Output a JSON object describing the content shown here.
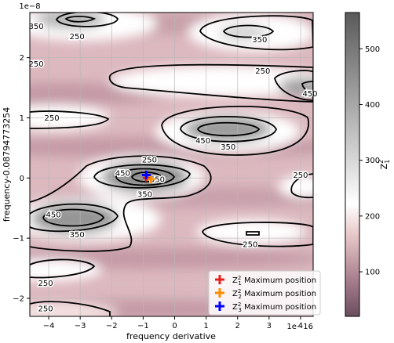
{
  "chart_data": {
    "type": "heatmap",
    "title": "",
    "xlabel": "frequency derivative",
    "ylabel": "frequency-0.08794773254",
    "x_multiplier": "1e−16",
    "y_multiplier": "1e−8",
    "xlim": [
      -4.6,
      4.4
    ],
    "ylim": [
      -2.3,
      2.75
    ],
    "xticks": [
      -4,
      -3,
      -2,
      -1,
      0,
      1,
      2,
      3,
      4
    ],
    "yticks": [
      -2,
      -1,
      0,
      1,
      2
    ],
    "grid": true,
    "colorbar": {
      "label": "Z²₁",
      "range": [
        20,
        565
      ],
      "ticks": [
        100,
        200,
        300,
        400,
        500
      ],
      "colormap": [
        "#6a4d5e",
        "#a87e8e",
        "#e8c9c9",
        "#ffffff",
        "#c8c8c8",
        "#8c8c8c",
        "#5a5a5a"
      ]
    },
    "contour_levels": [
      250,
      350,
      450,
      550
    ],
    "contour_labels": [
      {
        "text": "250",
        "x": -3.1,
        "y": 2.35
      },
      {
        "text": "350",
        "x": -4.4,
        "y": 2.52
      },
      {
        "text": "350",
        "x": 2.7,
        "y": 2.3
      },
      {
        "text": "250",
        "x": -4.4,
        "y": 1.9
      },
      {
        "text": "250",
        "x": 2.8,
        "y": 1.78
      },
      {
        "text": "450",
        "x": 4.3,
        "y": 1.4
      },
      {
        "text": "250",
        "x": -3.9,
        "y": 1.0
      },
      {
        "text": "450",
        "x": 0.9,
        "y": 0.62
      },
      {
        "text": "350",
        "x": 1.7,
        "y": 0.52
      },
      {
        "text": "250",
        "x": -0.8,
        "y": 0.3
      },
      {
        "text": "250",
        "x": 4.0,
        "y": 0.05
      },
      {
        "text": "450",
        "x": -1.65,
        "y": 0.08
      },
      {
        "text": "550",
        "x": -0.55,
        "y": -0.02
      },
      {
        "text": "350",
        "x": -0.95,
        "y": -0.27
      },
      {
        "text": "450",
        "x": -3.85,
        "y": -0.61
      },
      {
        "text": "350",
        "x": -3.1,
        "y": -0.94
      },
      {
        "text": "250",
        "x": 2.4,
        "y": -1.1
      },
      {
        "text": "250",
        "x": -4.1,
        "y": -1.75
      },
      {
        "text": "250",
        "x": -4.1,
        "y": -2.17
      }
    ],
    "markers": [
      {
        "label": "Z²₁ Maximum position",
        "x": -0.9,
        "y": 0.0,
        "color": "#e8201c",
        "size": 9
      },
      {
        "label": "Z²₂ Maximum position",
        "x": -0.75,
        "y": -0.02,
        "color": "#ff8c00",
        "size": 10
      },
      {
        "label": "Z²₃ Maximum position",
        "x": -0.9,
        "y": 0.05,
        "color": "#0000ff",
        "size": 11
      }
    ],
    "legend": {
      "placement": "lower right",
      "entries": [
        {
          "prefix": "Z",
          "sup": "2",
          "sub": "1",
          "rest": " Maximum position",
          "color": "#e8201c"
        },
        {
          "prefix": "Z",
          "sup": "2",
          "sub": "2",
          "rest": " Maximum position",
          "color": "#ff8c00"
        },
        {
          "prefix": "Z",
          "sup": "2",
          "sub": "3",
          "rest": " Maximum position",
          "color": "#0000ff"
        }
      ]
    }
  }
}
